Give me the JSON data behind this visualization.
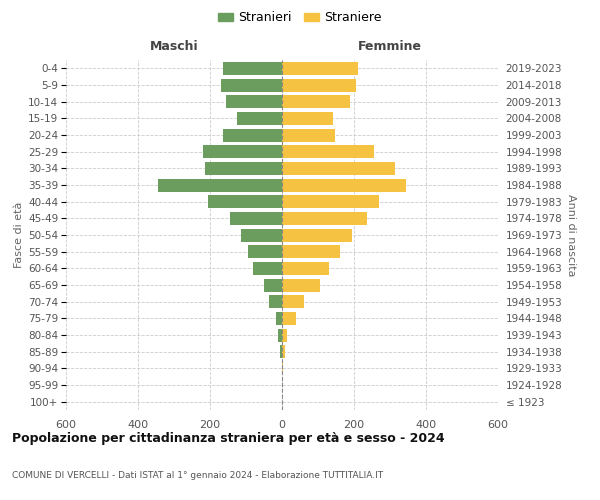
{
  "age_groups": [
    "100+",
    "95-99",
    "90-94",
    "85-89",
    "80-84",
    "75-79",
    "70-74",
    "65-69",
    "60-64",
    "55-59",
    "50-54",
    "45-49",
    "40-44",
    "35-39",
    "30-34",
    "25-29",
    "20-24",
    "15-19",
    "10-14",
    "5-9",
    "0-4"
  ],
  "birth_years": [
    "≤ 1923",
    "1924-1928",
    "1929-1933",
    "1934-1938",
    "1939-1943",
    "1944-1948",
    "1949-1953",
    "1954-1958",
    "1959-1963",
    "1964-1968",
    "1969-1973",
    "1974-1978",
    "1979-1983",
    "1984-1988",
    "1989-1993",
    "1994-1998",
    "1999-2003",
    "2004-2008",
    "2009-2013",
    "2014-2018",
    "2019-2023"
  ],
  "maschi": [
    0,
    0,
    0,
    5,
    10,
    18,
    35,
    50,
    80,
    95,
    115,
    145,
    205,
    345,
    215,
    220,
    165,
    125,
    155,
    170,
    165
  ],
  "femmine": [
    0,
    0,
    2,
    8,
    15,
    38,
    62,
    105,
    130,
    162,
    195,
    235,
    270,
    345,
    315,
    255,
    148,
    142,
    190,
    205,
    210
  ],
  "color_maschi": "#6b9e5e",
  "color_femmine": "#f5c242",
  "color_center_line": "#888888",
  "title": "Popolazione per cittadinanza straniera per età e sesso - 2024",
  "subtitle": "COMUNE DI VERCELLI - Dati ISTAT al 1° gennaio 2024 - Elaborazione TUTTITALIA.IT",
  "xlabel_left": "Maschi",
  "xlabel_right": "Femmine",
  "ylabel_left": "Fasce di età",
  "ylabel_right": "Anni di nascita",
  "legend_maschi": "Stranieri",
  "legend_femmine": "Straniere",
  "xlim": 600,
  "background_color": "#ffffff",
  "grid_color": "#cccccc"
}
